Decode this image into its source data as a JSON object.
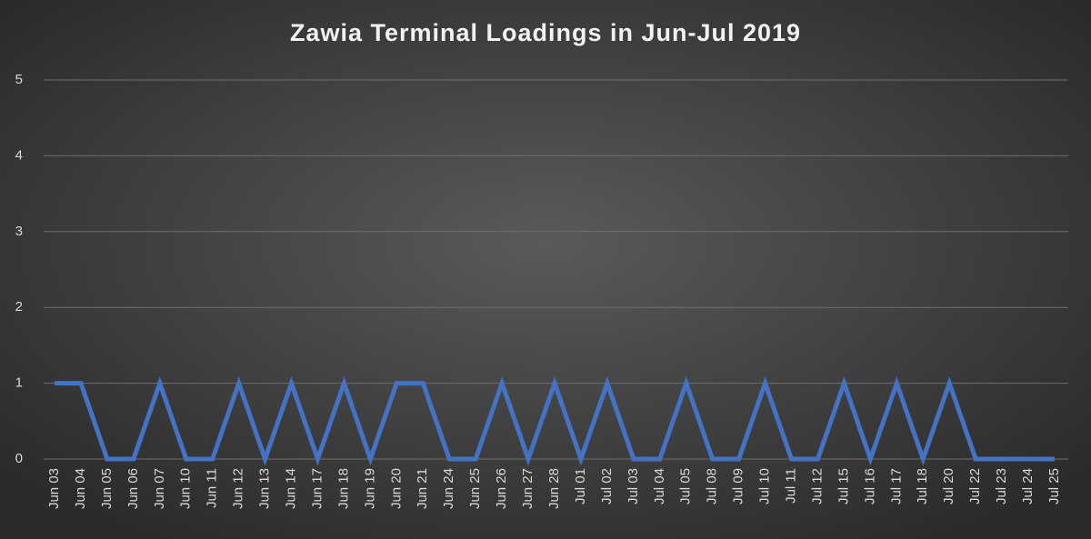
{
  "chart_data": {
    "type": "line",
    "title": "Zawia Terminal Loadings in Jun-Jul 2019",
    "categories": [
      "Jun 03",
      "Jun 04",
      "Jun 05",
      "Jun 06",
      "Jun 07",
      "Jun 10",
      "Jun 11",
      "Jun 12",
      "Jun 13",
      "Jun 14",
      "Jun 17",
      "Jun 18",
      "Jun 19",
      "Jun 20",
      "Jun 21",
      "Jun 24",
      "Jun 25",
      "Jun 26",
      "Jun 27",
      "Jun 28",
      "Jul 01",
      "Jul 02",
      "Jul 03",
      "Jul 04",
      "Jul 05",
      "Jul 08",
      "Jul 09",
      "Jul 10",
      "Jul 11",
      "Jul 12",
      "Jul 15",
      "Jul 16",
      "Jul 17",
      "Jul 18",
      "Jul 20",
      "Jul 22",
      "Jul 23",
      "Jul 24",
      "Jul 25"
    ],
    "values": [
      1,
      1,
      0,
      0,
      1,
      0,
      0,
      1,
      0,
      1,
      0,
      1,
      0,
      1,
      1,
      0,
      0,
      1,
      0,
      1,
      0,
      1,
      0,
      0,
      1,
      0,
      0,
      1,
      0,
      0,
      1,
      0,
      1,
      0,
      1,
      0,
      0,
      0,
      0
    ],
    "color": "#4472c4",
    "ylim": [
      0,
      5
    ],
    "yticks": [
      0,
      1,
      2,
      3,
      4,
      5
    ],
    "grid": true
  }
}
